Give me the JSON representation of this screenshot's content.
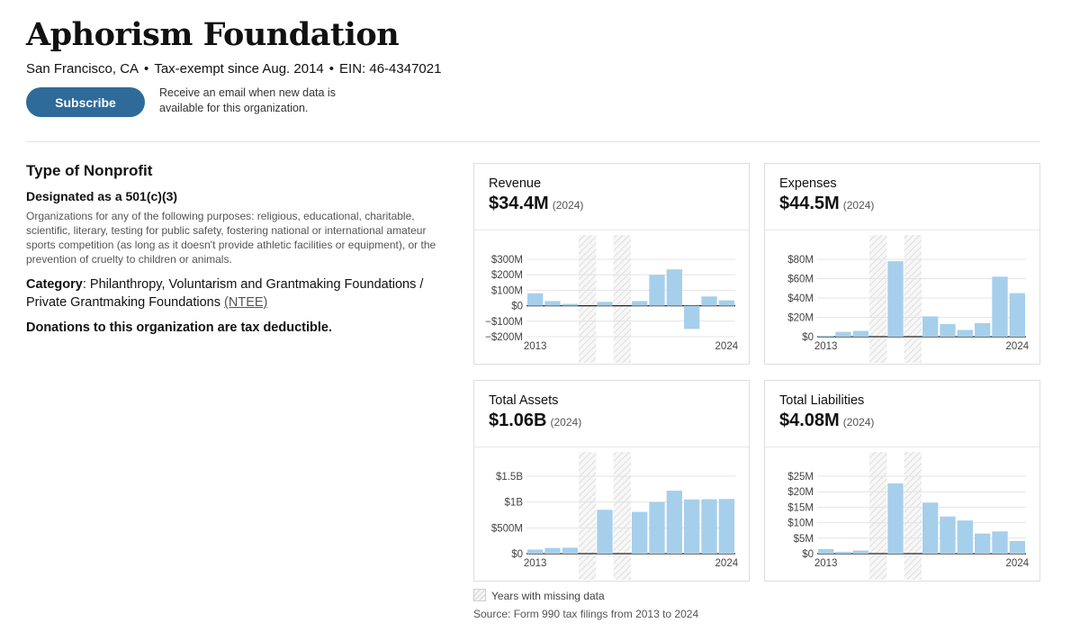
{
  "org": {
    "name": "Aphorism Foundation",
    "location": "San Francisco, CA",
    "tax_exempt": "Tax-exempt since Aug. 2014",
    "ein": "EIN: 46-4347021"
  },
  "subscribe": {
    "label": "Subscribe",
    "note": "Receive an email when new data is available for this organization."
  },
  "nonprofit": {
    "heading": "Type of Nonprofit",
    "designation": "Designated as a 501(c)(3)",
    "description": "Organizations for any of the following purposes: religious, educational, charitable, scientific, literary, testing for public safety, fostering national or international amateur sports competition (as long as it doesn't provide athletic facilities or equipment), or the prevention of cruelty to children or animals.",
    "category_label": "Category",
    "category_value": "Philanthropy, Voluntarism and Grantmaking Foundations / Private Grantmaking Foundations",
    "ntee_link": "(NTEE)",
    "deductible": "Donations to this organization are tax deductible."
  },
  "legend": {
    "missing": "Years with missing data",
    "source": "Source: Form 990 tax filings from 2013 to 2024"
  },
  "colors": {
    "bar": "#a6cfeb",
    "button": "#2e6b9a",
    "hatch": "#d6d6d6"
  },
  "chart_data": [
    {
      "type": "bar",
      "title": "Revenue",
      "value": "$34.4M",
      "value_year": "(2024)",
      "unit": "millions USD",
      "categories": [
        "2013",
        "2014",
        "2015",
        "2016",
        "2017",
        "2018",
        "2019",
        "2020",
        "2021",
        "2022",
        "2023",
        "2024"
      ],
      "values": [
        80,
        30,
        12,
        null,
        25,
        null,
        30,
        200,
        235,
        -150,
        60,
        35
      ],
      "missing_years": [
        "2016",
        "2018"
      ],
      "ylim": [
        -200,
        300
      ],
      "yticks": [
        -200,
        -100,
        0,
        100,
        200,
        300
      ],
      "ytick_labels": [
        "−$200M",
        "−$100M",
        "$0",
        "$100M",
        "$200M",
        "$300M"
      ],
      "x_labels": [
        "2013",
        "2024"
      ]
    },
    {
      "type": "bar",
      "title": "Expenses",
      "value": "$44.5M",
      "value_year": "(2024)",
      "unit": "millions USD",
      "categories": [
        "2013",
        "2014",
        "2015",
        "2016",
        "2017",
        "2018",
        "2019",
        "2020",
        "2021",
        "2022",
        "2023",
        "2024"
      ],
      "values": [
        1,
        5,
        6,
        null,
        78,
        null,
        21,
        13,
        7,
        14,
        62,
        45
      ],
      "missing_years": [
        "2016",
        "2018"
      ],
      "ylim": [
        0,
        80
      ],
      "yticks": [
        0,
        20,
        40,
        60,
        80
      ],
      "ytick_labels": [
        "$0",
        "$20M",
        "$40M",
        "$60M",
        "$80M"
      ],
      "x_labels": [
        "2013",
        "2024"
      ]
    },
    {
      "type": "bar",
      "title": "Total Assets",
      "value": "$1.06B",
      "value_year": "(2024)",
      "unit": "millions USD",
      "categories": [
        "2013",
        "2014",
        "2015",
        "2016",
        "2017",
        "2018",
        "2019",
        "2020",
        "2021",
        "2022",
        "2023",
        "2024"
      ],
      "values": [
        80,
        110,
        115,
        null,
        850,
        null,
        810,
        1000,
        1220,
        1050,
        1055,
        1060
      ],
      "missing_years": [
        "2016",
        "2018"
      ],
      "ylim": [
        0,
        1500
      ],
      "yticks": [
        0,
        500,
        1000,
        1500
      ],
      "ytick_labels": [
        "$0",
        "$500M",
        "$1B",
        "$1.5B"
      ],
      "x_labels": [
        "2013",
        "2024"
      ]
    },
    {
      "type": "bar",
      "title": "Total Liabilities",
      "value": "$4.08M",
      "value_year": "(2024)",
      "unit": "millions USD",
      "categories": [
        "2013",
        "2014",
        "2015",
        "2016",
        "2017",
        "2018",
        "2019",
        "2020",
        "2021",
        "2022",
        "2023",
        "2024"
      ],
      "values": [
        1.5,
        0.6,
        1.0,
        null,
        22.7,
        null,
        16.5,
        12,
        10.7,
        6.5,
        7.2,
        4.1
      ],
      "missing_years": [
        "2016",
        "2018"
      ],
      "ylim": [
        0,
        25
      ],
      "yticks": [
        0,
        5,
        10,
        15,
        20,
        25
      ],
      "ytick_labels": [
        "$0",
        "$5M",
        "$10M",
        "$15M",
        "$20M",
        "$25M"
      ],
      "x_labels": [
        "2013",
        "2024"
      ]
    }
  ]
}
